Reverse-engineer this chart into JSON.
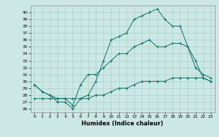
{
  "xlabel": "Humidex (Indice chaleur)",
  "bg_color": "#cce8e4",
  "grid_color": "#aacfcb",
  "line_color": "#1a7a6e",
  "xlim": [
    -0.5,
    23.5
  ],
  "ylim": [
    25.5,
    41
  ],
  "xticks": [
    0,
    1,
    2,
    3,
    4,
    5,
    6,
    7,
    8,
    9,
    10,
    11,
    12,
    13,
    14,
    15,
    16,
    17,
    18,
    19,
    20,
    21,
    22,
    23
  ],
  "yticks": [
    26,
    27,
    28,
    29,
    30,
    31,
    32,
    33,
    34,
    35,
    36,
    37,
    38,
    39,
    40
  ],
  "line1_x": [
    0,
    1,
    2,
    3,
    4,
    5,
    6,
    7,
    8,
    9,
    10,
    11,
    12,
    13,
    14,
    15,
    16,
    17,
    18,
    19,
    20,
    21,
    22,
    23
  ],
  "line1_y": [
    29.5,
    28.5,
    28,
    27,
    27,
    26,
    27.5,
    28,
    30,
    33,
    36,
    36.5,
    37,
    39,
    39.5,
    40,
    40.5,
    39,
    38,
    38,
    35,
    33,
    30.5,
    30
  ],
  "line2_x": [
    0,
    1,
    2,
    3,
    4,
    5,
    6,
    7,
    8,
    9,
    10,
    11,
    12,
    13,
    14,
    15,
    16,
    17,
    18,
    19,
    20,
    21,
    22,
    23
  ],
  "line2_y": [
    29.5,
    28.5,
    28,
    27.5,
    27.5,
    26.5,
    29.5,
    31,
    31,
    32,
    33,
    34,
    34,
    35,
    35.5,
    36,
    35,
    35,
    35.5,
    35.5,
    35,
    32,
    31,
    30.5
  ],
  "line3_x": [
    0,
    1,
    2,
    3,
    4,
    5,
    6,
    7,
    8,
    9,
    10,
    11,
    12,
    13,
    14,
    15,
    16,
    17,
    18,
    19,
    20,
    21,
    22,
    23
  ],
  "line3_y": [
    27.5,
    27.5,
    27.5,
    27.5,
    27.5,
    27.5,
    27.5,
    27.5,
    28,
    28,
    28.5,
    29,
    29,
    29.5,
    30,
    30,
    30,
    30,
    30.5,
    30.5,
    30.5,
    30.5,
    30.5,
    30
  ]
}
